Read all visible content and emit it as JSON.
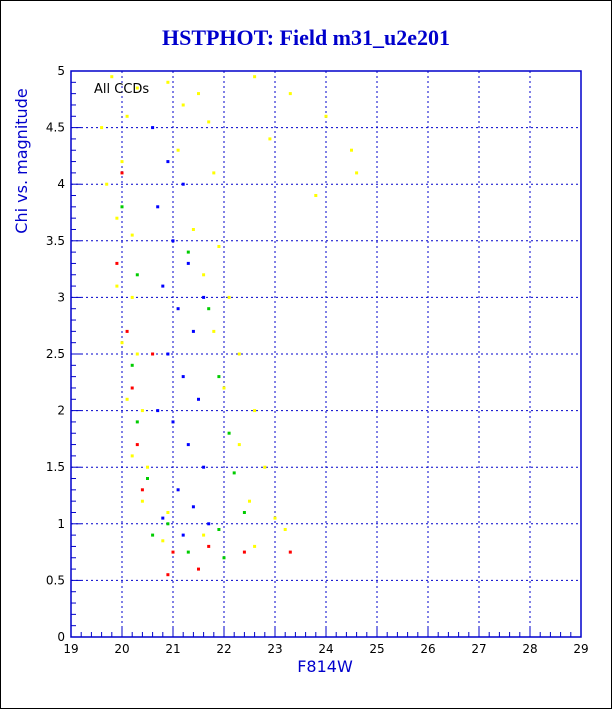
{
  "chart_data": {
    "type": "scatter",
    "title": "HSTPHOT: Field m31_u2e201",
    "xlabel": "F814W",
    "ylabel": "Chi vs. magnitude",
    "annotation": "All CCDs",
    "xlim": [
      19,
      29
    ],
    "ylim": [
      0,
      5
    ],
    "x_ticks": [
      "19",
      "20",
      "21",
      "22",
      "23",
      "24",
      "25",
      "26",
      "27",
      "28",
      "29"
    ],
    "y_ticks": [
      "0",
      "0.5",
      "1",
      "1.5",
      "2",
      "2.5",
      "3",
      "3.5",
      "4",
      "4.5",
      "5"
    ],
    "grid": true,
    "colors": {
      "title": "#0000cc",
      "axes": "#0000cc",
      "grid": "#0000cc",
      "background": "#ffffff"
    },
    "series": [
      {
        "color": "#ffff00",
        "points": [
          [
            19.8,
            4.95
          ],
          [
            20.3,
            4.85
          ],
          [
            20.9,
            4.9
          ],
          [
            21.5,
            4.8
          ],
          [
            19.6,
            4.5
          ],
          [
            20.1,
            4.6
          ],
          [
            21.2,
            4.7
          ],
          [
            21.7,
            4.55
          ],
          [
            19.7,
            4.0
          ],
          [
            20.0,
            4.2
          ],
          [
            21.1,
            4.3
          ],
          [
            21.8,
            4.1
          ],
          [
            19.9,
            3.7
          ],
          [
            20.2,
            3.55
          ],
          [
            21.4,
            3.6
          ],
          [
            21.9,
            3.45
          ],
          [
            19.9,
            3.1
          ],
          [
            20.2,
            3.0
          ],
          [
            21.6,
            3.2
          ],
          [
            22.1,
            3.0
          ],
          [
            20.0,
            2.6
          ],
          [
            20.3,
            2.5
          ],
          [
            21.8,
            2.7
          ],
          [
            22.3,
            2.5
          ],
          [
            20.1,
            2.1
          ],
          [
            20.4,
            2.0
          ],
          [
            22.0,
            2.2
          ],
          [
            22.6,
            2.0
          ],
          [
            20.2,
            1.6
          ],
          [
            20.5,
            1.5
          ],
          [
            22.3,
            1.7
          ],
          [
            22.8,
            1.5
          ],
          [
            20.4,
            1.2
          ],
          [
            20.9,
            1.1
          ],
          [
            22.5,
            1.2
          ],
          [
            23.0,
            1.05
          ],
          [
            20.8,
            0.85
          ],
          [
            21.6,
            0.9
          ],
          [
            22.6,
            0.8
          ],
          [
            23.2,
            0.95
          ],
          [
            22.6,
            4.95
          ],
          [
            23.3,
            4.8
          ],
          [
            24.0,
            4.6
          ],
          [
            24.5,
            4.3
          ],
          [
            24.6,
            4.1
          ],
          [
            23.8,
            3.9
          ],
          [
            22.9,
            4.4
          ]
        ]
      },
      {
        "color": "#00cc00",
        "points": [
          [
            20.0,
            3.8
          ],
          [
            20.3,
            3.2
          ],
          [
            21.3,
            3.4
          ],
          [
            21.7,
            2.9
          ],
          [
            20.2,
            2.4
          ],
          [
            21.9,
            2.3
          ],
          [
            20.3,
            1.9
          ],
          [
            22.1,
            1.8
          ],
          [
            20.5,
            1.4
          ],
          [
            22.2,
            1.45
          ],
          [
            20.9,
            1.0
          ],
          [
            21.9,
            0.95
          ],
          [
            22.4,
            1.1
          ],
          [
            21.3,
            0.75
          ],
          [
            22.0,
            0.7
          ],
          [
            20.6,
            0.9
          ]
        ]
      },
      {
        "color": "#ff0000",
        "points": [
          [
            20.0,
            4.1
          ],
          [
            19.9,
            3.3
          ],
          [
            20.1,
            2.7
          ],
          [
            20.2,
            2.2
          ],
          [
            20.3,
            1.7
          ],
          [
            20.4,
            1.3
          ],
          [
            21.0,
            0.75
          ],
          [
            21.5,
            0.6
          ],
          [
            20.9,
            0.55
          ],
          [
            21.7,
            0.8
          ],
          [
            22.4,
            0.75
          ],
          [
            23.3,
            0.75
          ],
          [
            20.6,
            2.5
          ]
        ]
      },
      {
        "color": "#0000ff",
        "points": [
          [
            20.6,
            4.5
          ],
          [
            20.9,
            4.2
          ],
          [
            21.2,
            4.0
          ],
          [
            20.7,
            3.8
          ],
          [
            21.0,
            3.5
          ],
          [
            21.3,
            3.3
          ],
          [
            20.8,
            3.1
          ],
          [
            21.1,
            2.9
          ],
          [
            21.4,
            2.7
          ],
          [
            20.9,
            2.5
          ],
          [
            21.2,
            2.3
          ],
          [
            21.5,
            2.1
          ],
          [
            21.0,
            1.9
          ],
          [
            21.3,
            1.7
          ],
          [
            21.6,
            1.5
          ],
          [
            21.1,
            1.3
          ],
          [
            21.4,
            1.15
          ],
          [
            21.7,
            1.0
          ],
          [
            21.2,
            0.9
          ],
          [
            20.8,
            1.05
          ],
          [
            20.7,
            2.0
          ],
          [
            21.6,
            3.0
          ]
        ]
      }
    ]
  }
}
